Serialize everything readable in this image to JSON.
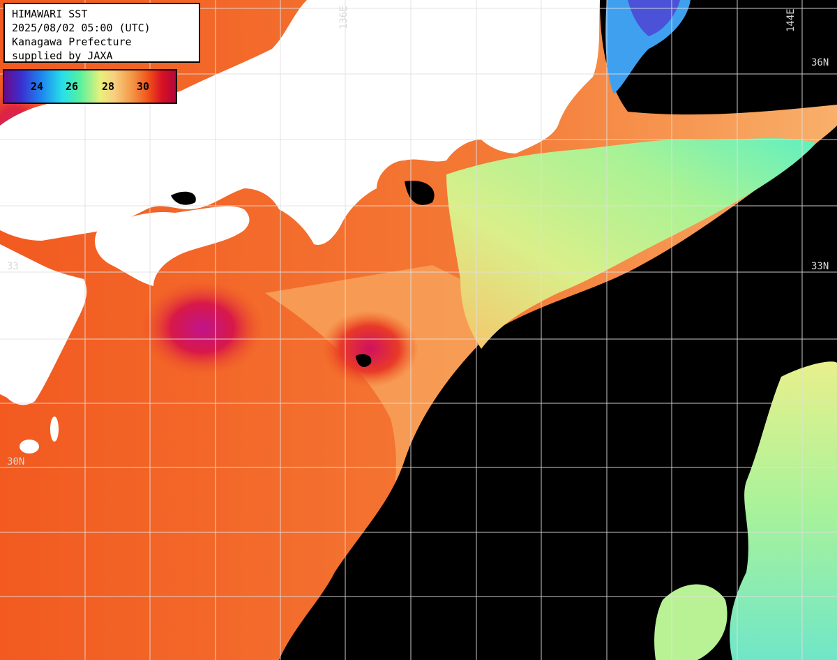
{
  "header": {
    "title": "HIMAWARI SST",
    "timestamp": "2025/08/02 05:00 (UTC)",
    "region": "Kanagawa Prefecture",
    "credit": "supplied by JAXA"
  },
  "legend": {
    "ticks": [
      "24",
      "26",
      "28",
      "30"
    ],
    "unit": ""
  },
  "grid_labels": {
    "lon_136": "136E",
    "lon_144": "144E",
    "lat_36": "36N",
    "lat_33_right": "33N",
    "lat_33_left": "33",
    "lat_30": "30N"
  },
  "colors": {
    "land": "#ffffff",
    "cloud": "#000000",
    "grid": "#e8e8e8",
    "warm": "#f0601e",
    "hot": "#c81030",
    "mild": "#f6c070",
    "cool": "#a0f090",
    "cold": "#30b8f0"
  }
}
